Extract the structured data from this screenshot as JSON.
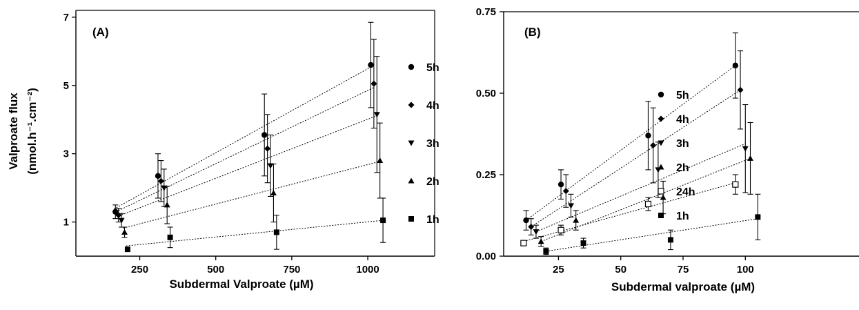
{
  "y_axis_title_line1": "Valproate flux",
  "y_axis_title_line2": "(nmol.h⁻¹.cm⁻²)",
  "chart_data": [
    {
      "type": "scatter",
      "panel_label": "(A)",
      "xlabel": "Subdermal Valproate (µM)",
      "ylabel": "Valproate flux (nmol.h⁻¹.cm⁻²)",
      "xlim": [
        40,
        1220
      ],
      "ylim": [
        0,
        7.2
      ],
      "x_ticks": [
        250,
        500,
        750,
        1000
      ],
      "y_ticks": [
        1,
        3,
        5,
        7
      ],
      "y_tick_labels": [
        "1",
        "3",
        "5",
        "7"
      ],
      "legend_position": "right",
      "grid": false,
      "series": [
        {
          "name": "5h",
          "marker": "circle",
          "points": [
            {
              "x": 170,
              "y": 1.3,
              "err": 0.2
            },
            {
              "x": 310,
              "y": 2.35,
              "err": 0.65
            },
            {
              "x": 660,
              "y": 3.55,
              "err": 1.2
            },
            {
              "x": 1010,
              "y": 5.6,
              "err": 1.25
            }
          ],
          "fit": [
            [
              165,
              1.38
            ],
            [
              1012,
              5.55
            ]
          ]
        },
        {
          "name": "4h",
          "marker": "diamond",
          "points": [
            {
              "x": 180,
              "y": 1.2,
              "err": 0.2
            },
            {
              "x": 320,
              "y": 2.2,
              "err": 0.6
            },
            {
              "x": 670,
              "y": 3.15,
              "err": 1.0
            },
            {
              "x": 1020,
              "y": 5.05,
              "err": 1.3
            }
          ],
          "fit": [
            [
              172,
              1.3
            ],
            [
              1022,
              4.95
            ]
          ]
        },
        {
          "name": "3h",
          "marker": "triangle-down",
          "points": [
            {
              "x": 190,
              "y": 1.05,
              "err": 0.2
            },
            {
              "x": 330,
              "y": 2.0,
              "err": 0.55
            },
            {
              "x": 680,
              "y": 2.65,
              "err": 0.9
            },
            {
              "x": 1030,
              "y": 4.15,
              "err": 1.7
            }
          ],
          "fit": [
            [
              182,
              1.18
            ],
            [
              1032,
              4.12
            ]
          ]
        },
        {
          "name": "2h",
          "marker": "triangle-up",
          "points": [
            {
              "x": 200,
              "y": 0.7,
              "err": 0.15
            },
            {
              "x": 340,
              "y": 1.5,
              "err": 0.55
            },
            {
              "x": 690,
              "y": 1.85,
              "err": 0.85
            },
            {
              "x": 1040,
              "y": 2.8,
              "err": 1.1
            }
          ],
          "fit": [
            [
              195,
              0.82
            ],
            [
              1042,
              2.78
            ]
          ]
        },
        {
          "name": "1h",
          "marker": "square",
          "points": [
            {
              "x": 210,
              "y": 0.2,
              "err": 0.0
            },
            {
              "x": 350,
              "y": 0.55,
              "err": 0.3
            },
            {
              "x": 700,
              "y": 0.7,
              "err": 0.5
            },
            {
              "x": 1050,
              "y": 1.05,
              "err": 0.65
            }
          ],
          "fit": [
            [
              205,
              0.3
            ],
            [
              1052,
              1.05
            ]
          ]
        }
      ]
    },
    {
      "type": "scatter",
      "panel_label": "(B)",
      "xlabel": "Subdermal valproate (µM)",
      "ylabel": "",
      "xlim": [
        3,
        147
      ],
      "ylim": [
        0,
        0.75
      ],
      "x_ticks": [
        25,
        50,
        75,
        100
      ],
      "y_ticks": [
        0,
        0.25,
        0.5,
        0.75
      ],
      "y_tick_labels": [
        "0.00",
        "0.25",
        "0.50",
        "0.75"
      ],
      "legend_position": "right",
      "grid": false,
      "series": [
        {
          "name": "5h",
          "marker": "circle",
          "points": [
            {
              "x": 12,
              "y": 0.11,
              "err": 0.03
            },
            {
              "x": 26,
              "y": 0.22,
              "err": 0.045
            },
            {
              "x": 61,
              "y": 0.37,
              "err": 0.105
            },
            {
              "x": 96,
              "y": 0.585,
              "err": 0.1
            }
          ],
          "fit": [
            [
              12,
              0.11
            ],
            [
              96,
              0.585
            ]
          ]
        },
        {
          "name": "4h",
          "marker": "diamond",
          "points": [
            {
              "x": 14,
              "y": 0.09,
              "err": 0.025
            },
            {
              "x": 28,
              "y": 0.2,
              "err": 0.05
            },
            {
              "x": 63,
              "y": 0.34,
              "err": 0.115
            },
            {
              "x": 98,
              "y": 0.51,
              "err": 0.12
            }
          ],
          "fit": [
            [
              14,
              0.09
            ],
            [
              98,
              0.51
            ]
          ]
        },
        {
          "name": "3h",
          "marker": "triangle-down",
          "points": [
            {
              "x": 16,
              "y": 0.075,
              "err": 0.02
            },
            {
              "x": 30,
              "y": 0.155,
              "err": 0.035
            },
            {
              "x": 65,
              "y": 0.265,
              "err": 0.085
            },
            {
              "x": 100,
              "y": 0.33,
              "err": 0.135
            }
          ],
          "fit": [
            [
              16,
              0.075
            ],
            [
              100,
              0.345
            ]
          ]
        },
        {
          "name": "2h",
          "marker": "triangle-up",
          "points": [
            {
              "x": 18,
              "y": 0.045,
              "err": 0.015
            },
            {
              "x": 32,
              "y": 0.11,
              "err": 0.03
            },
            {
              "x": 67,
              "y": 0.18,
              "err": 0.05
            },
            {
              "x": 102,
              "y": 0.3,
              "err": 0.11
            }
          ],
          "fit": [
            [
              18,
              0.045
            ],
            [
              102,
              0.3
            ]
          ]
        },
        {
          "name": "24h",
          "marker": "open-square",
          "points": [
            {
              "x": 11,
              "y": 0.04,
              "err": 0.0
            },
            {
              "x": 26,
              "y": 0.08,
              "err": 0.015
            },
            {
              "x": 61,
              "y": 0.16,
              "err": 0.02
            },
            {
              "x": 96,
              "y": 0.22,
              "err": 0.03
            }
          ],
          "fit": [
            [
              11,
              0.045
            ],
            [
              96,
              0.225
            ]
          ]
        },
        {
          "name": "1h",
          "marker": "square",
          "points": [
            {
              "x": 20,
              "y": 0.015,
              "err": 0.01
            },
            {
              "x": 35,
              "y": 0.04,
              "err": 0.015
            },
            {
              "x": 70,
              "y": 0.05,
              "err": 0.03
            },
            {
              "x": 105,
              "y": 0.12,
              "err": 0.07
            }
          ],
          "fit": [
            [
              20,
              0.015
            ],
            [
              105,
              0.115
            ]
          ]
        }
      ]
    }
  ]
}
